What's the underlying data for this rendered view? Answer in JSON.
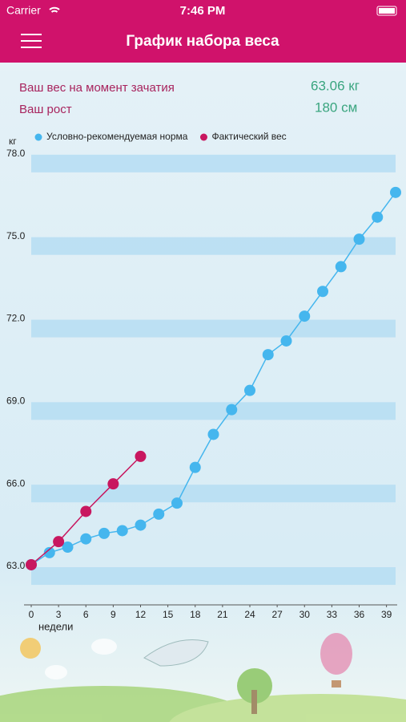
{
  "status_bar": {
    "carrier": "Carrier",
    "time": "7:46 PM"
  },
  "header": {
    "title": "График набора веса"
  },
  "info": {
    "weight_label": "Ваш вес на момент зачатия",
    "weight_value": "63.06 кг",
    "height_label": "Ваш рост",
    "height_value": "180 см"
  },
  "chart_data": {
    "type": "line",
    "y_label": "кг",
    "x_label": "недели",
    "xlim": [
      0,
      40
    ],
    "xticks": [
      0,
      3,
      6,
      9,
      12,
      15,
      18,
      21,
      24,
      27,
      30,
      33,
      36,
      39
    ],
    "ylim": [
      61.6,
      78.2
    ],
    "yticks": [
      {
        "value": 63,
        "label": "63.0"
      },
      {
        "value": 66,
        "label": "66.0"
      },
      {
        "value": 69,
        "label": "69.0"
      },
      {
        "value": 72,
        "label": "72.0"
      },
      {
        "value": 75,
        "label": "75.0"
      },
      {
        "value": 78,
        "label": "78.0"
      }
    ],
    "grid": true,
    "legend": "top",
    "series": [
      {
        "name": "Условно-рекомендуемая норма",
        "color": "#45b6ee",
        "x": [
          0,
          2,
          4,
          6,
          8,
          10,
          12,
          14,
          16,
          18,
          20,
          22,
          24,
          26,
          28,
          30,
          32,
          34,
          36,
          38,
          40
        ],
        "values": [
          63.06,
          63.5,
          63.7,
          64.0,
          64.2,
          64.3,
          64.5,
          64.9,
          65.3,
          66.6,
          67.8,
          68.7,
          69.4,
          70.7,
          71.2,
          72.1,
          73.0,
          73.9,
          74.9,
          75.7,
          76.6
        ]
      },
      {
        "name": "Фактический вес",
        "color": "#c8175f",
        "x": [
          0,
          3,
          6,
          9,
          12
        ],
        "values": [
          63.06,
          63.9,
          65.0,
          66.0,
          67.0
        ]
      }
    ]
  }
}
